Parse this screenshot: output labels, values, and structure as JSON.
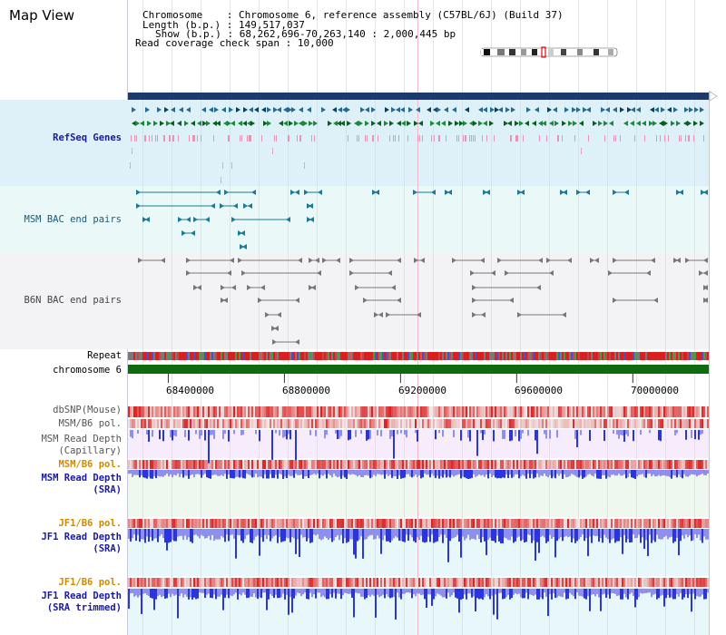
{
  "header": {
    "title": "Map View",
    "chromosome_key": "Chromosome",
    "chromosome_value": "Chromosome 6, reference assembly (C57BL/6J) (Build 37)",
    "length_key": "Length (b.p.)",
    "length_value": "149,517,037",
    "show_key": "Show (b.p.)",
    "show_value": "68,262,696-70,263,140 : 2,000,445 bp",
    "span_key": "Read coverage check span",
    "span_value": "10,000"
  },
  "tracks": {
    "refseq": "RefSeq Genes",
    "msm_bac": "MSM BAC end pairs",
    "b6n_bac": "B6N BAC end pairs",
    "repeat": "Repeat",
    "chromosome": "chromosome 6",
    "dbsnp": "dbSNP(Mouse)",
    "msm_pol1": "MSM/B6 pol.",
    "msm_depth_cap_1": "MSM Read Depth",
    "msm_depth_cap_2": "(Capillary)",
    "msm_pol2": "MSM/B6 pol.",
    "msm_depth_sra_1": "MSM Read Depth",
    "msm_depth_sra_2": "(SRA)",
    "jf1_pol1": "JF1/B6 pol.",
    "jf1_depth_sra_1": "JF1 Read Depth",
    "jf1_depth_sra_2": "(SRA)",
    "jf1_pol2": "JF1/B6 pol.",
    "jf1_depth_trim_1": "JF1 Read Depth",
    "jf1_depth_trim_2": "(SRA trimmed)"
  },
  "axis": {
    "ticks": [
      "68400000",
      "68800000",
      "69200000",
      "69600000",
      "70000000"
    ],
    "tick_values": [
      68400000,
      68800000,
      69200000,
      69600000,
      70000000
    ],
    "range": [
      68262696,
      70263140
    ]
  },
  "colors": {
    "scale_bar": "#1c3a6b",
    "chromosome_bar": "#0f6b0f",
    "refseq_bg": "#def0f8",
    "msm_bac_bg": "#eaf8f8",
    "b6n_bac_bg": "#f3f3f6",
    "capillary_bg": "#f7ecfb",
    "sra_bg": "#eef8ee",
    "jf1_bg": "#e8f7f9",
    "depth_blue": "#2a34e0",
    "depth_light": "#8f8ff0",
    "pol_red": "#e02020",
    "grid_line": "#d8d8e4",
    "center_line": "#f0b8c8"
  },
  "icons": {
    "ideogram": "chromosome-ideogram-icon",
    "scroll_right": "triangle-right-icon"
  }
}
